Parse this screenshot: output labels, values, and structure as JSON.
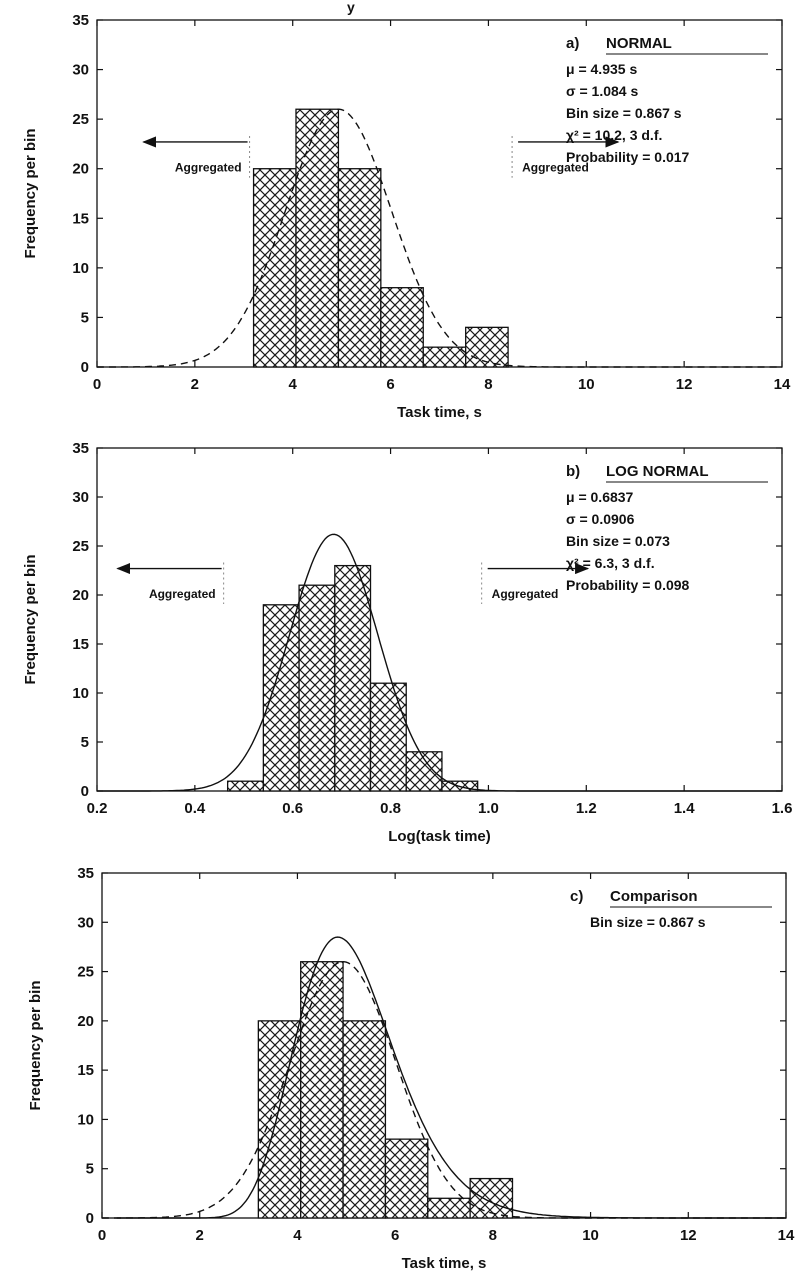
{
  "figure": {
    "top_title_fragment": "y"
  },
  "chart_data": [
    {
      "type": "bar",
      "panel_label": "a)",
      "panel_title": "NORMAL",
      "stats": [
        "μ = 4.935 s",
        "σ = 1.084 s",
        "Bin size = 0.867 s",
        "χ² = 10.2, 3 d.f.",
        "Probability = 0.017"
      ],
      "xlabel": "Task time, s",
      "ylabel": "Frequency per bin",
      "xlim": [
        0,
        14
      ],
      "ylim": [
        0,
        35
      ],
      "xticks": [
        "0",
        "2",
        "4",
        "6",
        "8",
        "10",
        "12",
        "14"
      ],
      "yticks": [
        "0",
        "5",
        "10",
        "15",
        "20",
        "25",
        "30",
        "35"
      ],
      "aggregated_left": "Aggregated",
      "aggregated_right": "Aggregated",
      "bins": [
        {
          "x0": 3.2,
          "x1": 4.067,
          "value": 20
        },
        {
          "x0": 4.067,
          "x1": 4.934,
          "value": 26
        },
        {
          "x0": 4.934,
          "x1": 5.801,
          "value": 20
        },
        {
          "x0": 5.801,
          "x1": 6.668,
          "value": 8
        },
        {
          "x0": 6.668,
          "x1": 7.535,
          "value": 2
        },
        {
          "x0": 7.535,
          "x1": 8.402,
          "value": 4
        }
      ],
      "fits": [
        {
          "kind": "normal",
          "mu": 4.935,
          "sigma": 1.084,
          "peak": 26,
          "style": "dashed",
          "x_range": [
            0,
            14
          ]
        }
      ]
    },
    {
      "type": "bar",
      "panel_label": "b)",
      "panel_title": "LOG NORMAL",
      "stats": [
        "μ = 0.6837",
        "σ = 0.0906",
        "Bin size = 0.073",
        "χ² = 6.3, 3 d.f.",
        "Probability = 0.098"
      ],
      "xlabel": "Log(task time)",
      "ylabel": "Frequency per bin",
      "xlim": [
        0.2,
        1.6
      ],
      "ylim": [
        0,
        35
      ],
      "xticks": [
        "0.2",
        "0.4",
        "0.6",
        "0.8",
        "1.0",
        "1.2",
        "1.4",
        "1.6"
      ],
      "yticks": [
        "0",
        "5",
        "10",
        "15",
        "20",
        "25",
        "30",
        "35"
      ],
      "aggregated_left": "Aggregated",
      "aggregated_right": "Aggregated",
      "bins": [
        {
          "x0": 0.467,
          "x1": 0.54,
          "value": 1
        },
        {
          "x0": 0.54,
          "x1": 0.613,
          "value": 19
        },
        {
          "x0": 0.613,
          "x1": 0.686,
          "value": 21
        },
        {
          "x0": 0.686,
          "x1": 0.759,
          "value": 23
        },
        {
          "x0": 0.759,
          "x1": 0.832,
          "value": 11
        },
        {
          "x0": 0.832,
          "x1": 0.905,
          "value": 4
        },
        {
          "x0": 0.905,
          "x1": 0.978,
          "value": 1
        }
      ],
      "fits": [
        {
          "kind": "normal",
          "mu": 0.6837,
          "sigma": 0.0906,
          "peak": 26.2,
          "style": "solid",
          "x_range": [
            0.2,
            1.6
          ]
        }
      ]
    },
    {
      "type": "bar",
      "panel_label": "c)",
      "panel_title": "Comparison",
      "stats": [
        "Bin size = 0.867 s"
      ],
      "xlabel": "Task time, s",
      "ylabel": "Frequency per bin",
      "xlim": [
        0,
        14
      ],
      "ylim": [
        0,
        35
      ],
      "xticks": [
        "0",
        "2",
        "4",
        "6",
        "8",
        "10",
        "12",
        "14"
      ],
      "yticks": [
        "0",
        "5",
        "10",
        "15",
        "20",
        "25",
        "30",
        "35"
      ],
      "bins": [
        {
          "x0": 3.2,
          "x1": 4.067,
          "value": 20
        },
        {
          "x0": 4.067,
          "x1": 4.934,
          "value": 26
        },
        {
          "x0": 4.934,
          "x1": 5.801,
          "value": 20
        },
        {
          "x0": 5.801,
          "x1": 6.668,
          "value": 8
        },
        {
          "x0": 6.668,
          "x1": 7.535,
          "value": 2
        },
        {
          "x0": 7.535,
          "x1": 8.402,
          "value": 4
        }
      ],
      "fits": [
        {
          "kind": "normal",
          "mu": 4.935,
          "sigma": 1.084,
          "peak": 26,
          "style": "dashed",
          "x_range": [
            0,
            14
          ]
        },
        {
          "kind": "lognormal",
          "mu": 0.6837,
          "sigma": 0.0906,
          "peak": 28.5,
          "style": "solid",
          "x_range": [
            0.3,
            14
          ]
        }
      ]
    }
  ]
}
